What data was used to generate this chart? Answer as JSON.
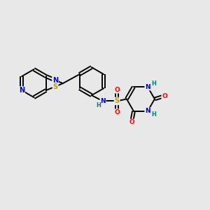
{
  "bg_color": "#e8e8e8",
  "bond_color": "#000000",
  "atom_colors": {
    "N": "#0000cc",
    "S": "#b8a000",
    "O": "#ff0000",
    "H": "#008080",
    "C": "#000000"
  },
  "figsize": [
    3.0,
    3.0
  ],
  "dpi": 100,
  "lw": 1.4,
  "doff": 0.07
}
